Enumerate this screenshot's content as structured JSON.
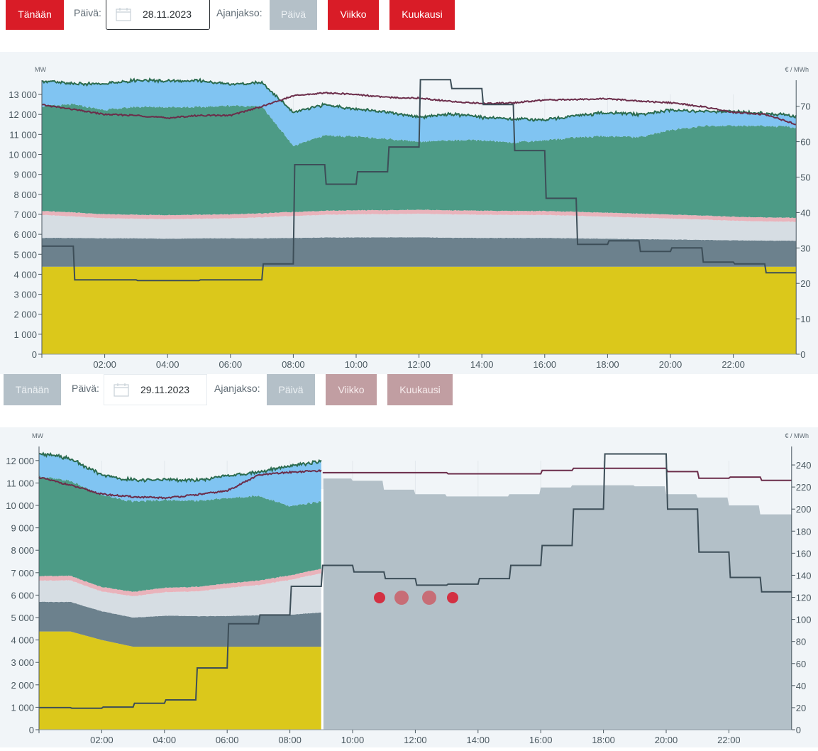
{
  "toolbar1": {
    "today": "Tänään",
    "date_label": "Päivä:",
    "date_value": "28.11.2023",
    "period_label": "Ajanjakso:",
    "day": "Päivä",
    "week": "Viikko",
    "month": "Kuukausi"
  },
  "toolbar2": {
    "today": "Tänään",
    "date_label": "Päivä:",
    "date_value": "29.11.2023",
    "period_label": "Ajanjakso:",
    "day": "Päivä",
    "week": "Viikko",
    "month": "Kuukausi"
  },
  "colors": {
    "red": "#d91c27",
    "nuclear": "#dbc81b",
    "chp_district": "#6c818d",
    "chp_industry": "#d6dde3",
    "other": "#e9b3bb",
    "hydro": "#4d9b86",
    "wind": "#80c4f2",
    "production_line": "#2b6b4f",
    "consumption_line": "#6b2d4a",
    "price_line": "#3d4e58",
    "forecast": "#b3c0c8"
  },
  "chart_data": [
    {
      "type": "area",
      "title": "28.11.2023",
      "ylabel": "MW",
      "y2label": "€ / MWh",
      "ylim": [
        0,
        13800
      ],
      "y2lim": [
        0,
        77
      ],
      "yticks": [
        "0",
        "1 000",
        "2 000",
        "3 000",
        "4 000",
        "5 000",
        "6 000",
        "7 000",
        "8 000",
        "9 000",
        "10 000",
        "11 000",
        "12 000",
        "13 000"
      ],
      "y2ticks": [
        "0",
        "10",
        "20",
        "30",
        "40",
        "50",
        "60",
        "70"
      ],
      "xticks": [
        "02:00",
        "04:00",
        "06:00",
        "08:00",
        "10:00",
        "12:00",
        "14:00",
        "16:00",
        "18:00",
        "20:00",
        "22:00"
      ],
      "x_hours": [
        0,
        1,
        2,
        3,
        4,
        5,
        6,
        7,
        8,
        9,
        10,
        11,
        12,
        13,
        14,
        15,
        16,
        17,
        18,
        19,
        20,
        21,
        22,
        23,
        24
      ],
      "stack": [
        {
          "name": "nuclear",
          "values": [
            4380,
            4380,
            4380,
            4380,
            4380,
            4380,
            4380,
            4380,
            4380,
            4380,
            4380,
            4380,
            4380,
            4380,
            4380,
            4380,
            4380,
            4380,
            4380,
            4380,
            4380,
            4380,
            4380,
            4380,
            4380
          ]
        },
        {
          "name": "chp_district",
          "values": [
            1440,
            1440,
            1420,
            1420,
            1400,
            1420,
            1420,
            1420,
            1440,
            1460,
            1460,
            1470,
            1470,
            1450,
            1440,
            1440,
            1440,
            1420,
            1400,
            1380,
            1360,
            1340,
            1320,
            1310,
            1300
          ]
        },
        {
          "name": "chp_industry",
          "values": [
            1150,
            1080,
            1000,
            980,
            980,
            980,
            1000,
            1050,
            1100,
            1140,
            1160,
            1160,
            1180,
            1170,
            1160,
            1150,
            1150,
            1130,
            1100,
            1080,
            1050,
            1020,
            980,
            960,
            950
          ]
        },
        {
          "name": "other",
          "values": [
            200,
            200,
            200,
            200,
            200,
            200,
            200,
            200,
            200,
            200,
            200,
            200,
            200,
            200,
            200,
            200,
            200,
            200,
            200,
            200,
            200,
            200,
            200,
            200,
            200
          ]
        },
        {
          "name": "hydro",
          "values": [
            5240,
            5400,
            5220,
            5400,
            5410,
            5380,
            5440,
            5350,
            3300,
            3770,
            3680,
            3570,
            3410,
            3500,
            3520,
            3420,
            3540,
            3730,
            3830,
            3820,
            4220,
            4470,
            4550,
            4580,
            4520
          ]
        },
        {
          "name": "wind",
          "values": [
            1270,
            1020,
            1310,
            1320,
            1320,
            1320,
            1070,
            1200,
            1670,
            1550,
            1360,
            1360,
            1230,
            1320,
            1150,
            1190,
            1020,
            1090,
            1180,
            1150,
            1000,
            730,
            710,
            620,
            570
          ]
        }
      ],
      "consumption": [
        12480,
        12250,
        12000,
        11950,
        11820,
        11950,
        11950,
        12400,
        12930,
        13080,
        13000,
        12850,
        12820,
        12650,
        12550,
        12580,
        12720,
        12750,
        12780,
        12670,
        12580,
        12400,
        12100,
        12000,
        11500
      ],
      "price_eur": [
        30.5,
        21,
        21,
        20.8,
        20.8,
        21,
        21,
        25.5,
        53.5,
        48,
        51.5,
        58.5,
        77.5,
        75,
        70.5,
        57.5,
        44,
        31,
        32,
        29,
        30,
        26,
        25.5,
        23
      ],
      "legend_position": "none"
    },
    {
      "type": "area",
      "title": "29.11.2023",
      "ylabel": "MW",
      "y2label": "€ / MWh",
      "ylim": [
        0,
        12300
      ],
      "y2lim": [
        0,
        250
      ],
      "yticks": [
        "0",
        "1 000",
        "2 000",
        "3 000",
        "4 000",
        "5 000",
        "6 000",
        "7 000",
        "8 000",
        "9 000",
        "10 000",
        "11 000",
        "12 000"
      ],
      "y2ticks": [
        "0",
        "20",
        "40",
        "60",
        "80",
        "100",
        "120",
        "140",
        "160",
        "180",
        "200",
        "220",
        "240"
      ],
      "xticks": [
        "02:00",
        "04:00",
        "06:00",
        "08:00",
        "10:00",
        "12:00",
        "14:00",
        "16:00",
        "18:00",
        "20:00",
        "22:00"
      ],
      "x_hours_actual": [
        0,
        1,
        2,
        3,
        4,
        5,
        6,
        7,
        8,
        9
      ],
      "stack": [
        {
          "name": "nuclear",
          "values": [
            4380,
            4380,
            4000,
            3700,
            3700,
            3700,
            3700,
            3700,
            3700,
            3700
          ]
        },
        {
          "name": "chp_district",
          "values": [
            1320,
            1320,
            1280,
            1300,
            1380,
            1360,
            1370,
            1400,
            1430,
            1530
          ]
        },
        {
          "name": "chp_industry",
          "values": [
            950,
            960,
            880,
            950,
            1050,
            1100,
            1250,
            1350,
            1550,
            1750
          ]
        },
        {
          "name": "other",
          "values": [
            200,
            200,
            200,
            200,
            200,
            200,
            200,
            200,
            200,
            200
          ]
        },
        {
          "name": "hydro",
          "values": [
            4450,
            4220,
            4100,
            4020,
            3910,
            3840,
            3800,
            3780,
            3070,
            3000
          ]
        },
        {
          "name": "wind",
          "values": [
            1020,
            1000,
            900,
            940,
            920,
            900,
            1000,
            1060,
            1800,
            1780
          ]
        }
      ],
      "consumption_actual": [
        11250,
        10900,
        10500,
        10380,
        10330,
        10470,
        10650,
        11350,
        11480,
        11550
      ],
      "forecast_total_mw": [
        11200,
        11100,
        10700,
        10500,
        10400,
        10400,
        10500,
        10800,
        10900,
        10900,
        10850,
        10500,
        10350,
        10000,
        9600
      ],
      "forecast_hours": [
        9,
        10,
        11,
        12,
        13,
        14,
        15,
        16,
        17,
        18,
        19,
        20,
        21,
        22,
        23
      ],
      "consumption_forecast_eur_scale": [
        233,
        233,
        233,
        233,
        232,
        232,
        232,
        235,
        237,
        237,
        237,
        234,
        228,
        229,
        226
      ],
      "price_eur": [
        20,
        19.5,
        20.5,
        24,
        27,
        56,
        96,
        104,
        130,
        149,
        143,
        137,
        131,
        132,
        137,
        149,
        167,
        200,
        250,
        250,
        200,
        161,
        138,
        125
      ],
      "loading_indicator_dots": 4,
      "legend_position": "none"
    }
  ]
}
